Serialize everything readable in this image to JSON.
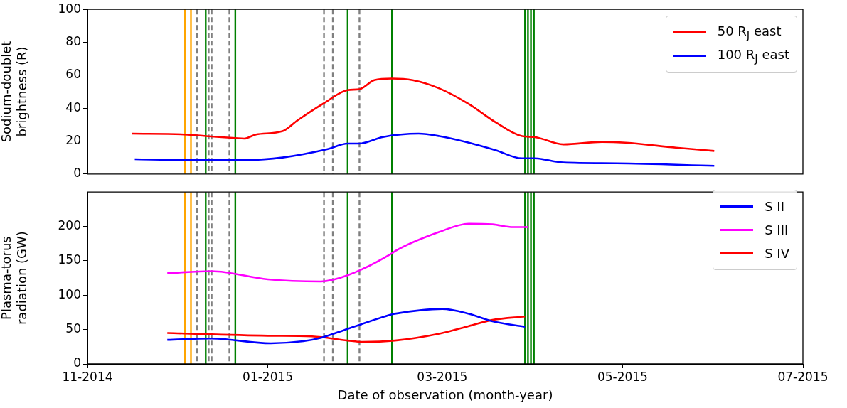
{
  "chart_data": [
    {
      "type": "line",
      "ylabel": "Sodium-doublet brightness (R)",
      "xlim": [
        "2014-11-01",
        "2015-07-01"
      ],
      "ylim": [
        0,
        100
      ],
      "yticks": [
        0,
        20,
        40,
        60,
        80,
        100
      ],
      "tick_labels": "y",
      "grid": false,
      "legend": "top right",
      "series": [
        {
          "name": "50 R$_{J}$ east",
          "color": "#ff0000",
          "x": [
            "2014-11-16",
            "2014-12-04",
            "2014-12-11",
            "2014-12-21",
            "2014-12-24",
            "2014-12-28",
            "2015-01-06",
            "2015-01-11",
            "2015-01-20",
            "2015-01-28",
            "2015-02-01",
            "2015-02-06",
            "2015-02-12",
            "2015-02-19",
            "2015-02-28",
            "2015-03-10",
            "2015-03-19",
            "2015-03-28",
            "2015-04-01",
            "2015-04-11",
            "2015-04-24",
            "2015-05-02",
            "2015-05-19",
            "2015-06-01"
          ],
          "values": [
            24.5,
            24,
            23,
            21.8,
            21.5,
            24,
            26,
            32.5,
            43,
            51,
            51.5,
            57,
            58,
            57,
            52,
            42.5,
            31.5,
            23,
            22.5,
            18,
            19.5,
            19,
            16,
            14
          ]
        },
        {
          "name": "100 R$_{J}$ east",
          "color": "#0000ff",
          "x": [
            "2014-11-17",
            "2014-12-04",
            "2014-12-25",
            "2015-01-06",
            "2015-01-21",
            "2015-01-28",
            "2015-02-01",
            "2015-02-09",
            "2015-02-21",
            "2015-02-28",
            "2015-03-10",
            "2015-03-19",
            "2015-03-28",
            "2015-04-01",
            "2015-04-11",
            "2015-04-29",
            "2015-06-01"
          ],
          "values": [
            9,
            8.5,
            8.5,
            10,
            15,
            18.5,
            18.5,
            22.5,
            24.5,
            23,
            19,
            14.5,
            9.5,
            9.5,
            7,
            6.5,
            5
          ]
        }
      ],
      "ref_lines": [
        {
          "axis": "x",
          "value": "2014-12-04",
          "color": "#ffa500",
          "line_style": "solid"
        },
        {
          "axis": "x",
          "value": "2014-12-06",
          "color": "#ffa500",
          "line_style": "solid"
        },
        {
          "axis": "x",
          "value": "2014-12-08",
          "color": "#808080",
          "line_style": "dashed"
        },
        {
          "axis": "x",
          "value": "2014-12-11",
          "color": "#008000",
          "line_style": "solid"
        },
        {
          "axis": "x",
          "value": "2014-12-12",
          "color": "#808080",
          "line_style": "dashed"
        },
        {
          "axis": "x",
          "value": "2014-12-13",
          "color": "#808080",
          "line_style": "dashed"
        },
        {
          "axis": "x",
          "value": "2014-12-19",
          "color": "#808080",
          "line_style": "dashed"
        },
        {
          "axis": "x",
          "value": "2014-12-21",
          "color": "#008000",
          "line_style": "solid"
        },
        {
          "axis": "x",
          "value": "2015-01-20",
          "color": "#808080",
          "line_style": "dashed"
        },
        {
          "axis": "x",
          "value": "2015-01-23",
          "color": "#808080",
          "line_style": "dashed"
        },
        {
          "axis": "x",
          "value": "2015-01-28",
          "color": "#008000",
          "line_style": "solid"
        },
        {
          "axis": "x",
          "value": "2015-02-01",
          "color": "#808080",
          "line_style": "dashed"
        },
        {
          "axis": "x",
          "value": "2015-02-12",
          "color": "#008000",
          "line_style": "solid"
        },
        {
          "axis": "x",
          "value": "2015-03-29",
          "color": "#008000",
          "line_style": "solid"
        },
        {
          "axis": "x",
          "value": "2015-03-30",
          "color": "#008000",
          "line_style": "solid"
        },
        {
          "axis": "x",
          "value": "2015-03-31",
          "color": "#008000",
          "line_style": "solid"
        },
        {
          "axis": "x",
          "value": "2015-04-01",
          "color": "#008000",
          "line_style": "solid"
        }
      ]
    },
    {
      "type": "line",
      "xlabel": "Date of observation (month-year)",
      "ylabel": "Plasma-torus radiation (GW)",
      "xlim": [
        "2014-11-01",
        "2015-07-01"
      ],
      "xticks": [
        {
          "value": "2014-11-01",
          "label": "11-2014"
        },
        {
          "value": "2015-01-01",
          "label": "01-2015"
        },
        {
          "value": "2015-03-01",
          "label": "03-2015"
        },
        {
          "value": "2015-05-01",
          "label": "05-2015"
        },
        {
          "value": "2015-07-01",
          "label": "07-2015"
        }
      ],
      "ylim": [
        0,
        250
      ],
      "yticks": [
        0,
        50,
        100,
        150,
        200
      ],
      "grid": false,
      "legend": "top right",
      "series": [
        {
          "name": "S II",
          "color": "#0000ff",
          "x": [
            "2014-11-28",
            "2014-12-13",
            "2015-01-02",
            "2015-01-13",
            "2015-01-19",
            "2015-01-28",
            "2015-02-12",
            "2015-02-13",
            "2015-03-01",
            "2015-03-10",
            "2015-03-18",
            "2015-03-29"
          ],
          "values": [
            35,
            37,
            30,
            33,
            38,
            51,
            72,
            73,
            80,
            73,
            62,
            54
          ]
        },
        {
          "name": "S III",
          "color": "#ff00ff",
          "x": [
            "2014-11-28",
            "2014-12-13",
            "2015-01-01",
            "2015-01-19",
            "2015-01-28",
            "2015-02-12",
            "2015-02-13",
            "2015-02-28",
            "2015-03-10",
            "2015-03-18",
            "2015-03-25",
            "2015-03-30"
          ],
          "values": [
            132,
            135,
            123,
            120,
            129,
            161,
            164,
            192,
            204,
            203,
            199,
            199
          ]
        },
        {
          "name": "S IV",
          "color": "#ff0000",
          "x": [
            "2014-11-28",
            "2015-01-01",
            "2015-01-16",
            "2015-01-28",
            "2015-02-02",
            "2015-02-13",
            "2015-02-28",
            "2015-03-10",
            "2015-03-18",
            "2015-03-29"
          ],
          "values": [
            45,
            41,
            40,
            34,
            32,
            34,
            44,
            55,
            64,
            69
          ]
        }
      ],
      "ref_lines": [
        {
          "axis": "x",
          "value": "2014-12-04",
          "color": "#ffa500",
          "line_style": "solid"
        },
        {
          "axis": "x",
          "value": "2014-12-06",
          "color": "#ffa500",
          "line_style": "solid"
        },
        {
          "axis": "x",
          "value": "2014-12-08",
          "color": "#808080",
          "line_style": "dashed"
        },
        {
          "axis": "x",
          "value": "2014-12-11",
          "color": "#008000",
          "line_style": "solid"
        },
        {
          "axis": "x",
          "value": "2014-12-12",
          "color": "#808080",
          "line_style": "dashed"
        },
        {
          "axis": "x",
          "value": "2014-12-13",
          "color": "#808080",
          "line_style": "dashed"
        },
        {
          "axis": "x",
          "value": "2014-12-19",
          "color": "#808080",
          "line_style": "dashed"
        },
        {
          "axis": "x",
          "value": "2014-12-21",
          "color": "#008000",
          "line_style": "solid"
        },
        {
          "axis": "x",
          "value": "2015-01-20",
          "color": "#808080",
          "line_style": "dashed"
        },
        {
          "axis": "x",
          "value": "2015-01-23",
          "color": "#808080",
          "line_style": "dashed"
        },
        {
          "axis": "x",
          "value": "2015-01-28",
          "color": "#008000",
          "line_style": "solid"
        },
        {
          "axis": "x",
          "value": "2015-02-01",
          "color": "#808080",
          "line_style": "dashed"
        },
        {
          "axis": "x",
          "value": "2015-02-12",
          "color": "#008000",
          "line_style": "solid"
        },
        {
          "axis": "x",
          "value": "2015-03-29",
          "color": "#008000",
          "line_style": "solid"
        },
        {
          "axis": "x",
          "value": "2015-03-30",
          "color": "#008000",
          "line_style": "solid"
        },
        {
          "axis": "x",
          "value": "2015-03-31",
          "color": "#008000",
          "line_style": "solid"
        },
        {
          "axis": "x",
          "value": "2015-04-01",
          "color": "#008000",
          "line_style": "solid"
        }
      ]
    }
  ]
}
